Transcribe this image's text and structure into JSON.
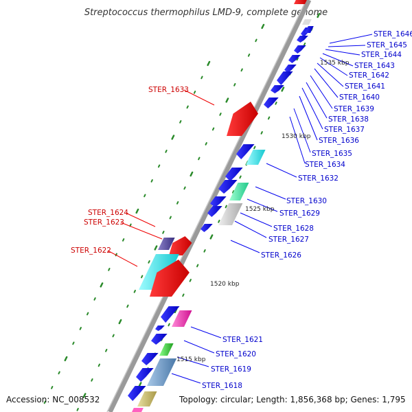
{
  "title": "Streptococcus thermophilus LMD-9, complete genome",
  "footer": {
    "accession": "Accession: NC_008532",
    "topology": "Topology: circular; Length: 1,856,368 bp; Genes: 1,795"
  },
  "colors": {
    "forward_label": "#cc0000",
    "reverse_label": "#0000cc",
    "tick": "#2a8a2a",
    "backbone": "#9a9a9a"
  },
  "kbp_marks": [
    "1535 kbp",
    "1530 kbp",
    "1525 kbp",
    "1520 kbp",
    "1515 kbp"
  ],
  "forward_genes": [
    "STER_1633",
    "STER_1624",
    "STER_1623",
    "STER_1622"
  ],
  "reverse_genes": [
    "STER_1646",
    "STER_1645",
    "STER_1644",
    "STER_1643",
    "STER_1642",
    "STER_1641",
    "STER_1640",
    "STER_1639",
    "STER_1638",
    "STER_1637",
    "STER_1636",
    "STER_1635",
    "STER_1634",
    "STER_1632",
    "STER_1630",
    "STER_1629",
    "STER_1628",
    "STER_1627",
    "STER_1626",
    "STER_1621",
    "STER_1620",
    "STER_1619",
    "STER_1618"
  ]
}
